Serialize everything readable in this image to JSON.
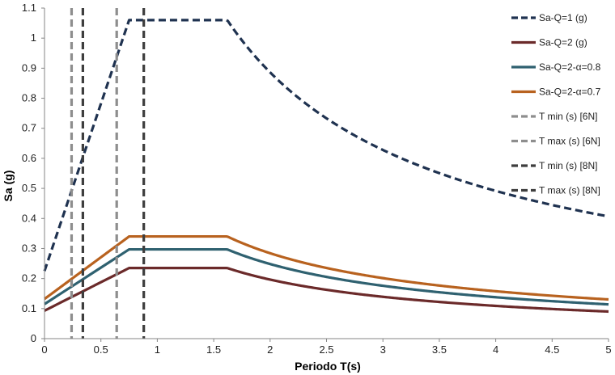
{
  "chart_data": {
    "type": "line",
    "title": "",
    "xlabel": "Periodo T(s)",
    "ylabel": "Sa (g)",
    "xlim": [
      0,
      5
    ],
    "ylim": [
      0,
      1.1
    ],
    "x_ticks": [
      "0",
      "0.5",
      "1",
      "1.5",
      "2",
      "2.5",
      "3",
      "3.5",
      "4",
      "4.5",
      "5"
    ],
    "y_ticks": [
      "0",
      "0.1",
      "0.2",
      "0.3",
      "0.4",
      "0.5",
      "0.6",
      "0.7",
      "0.8",
      "0.9",
      "1",
      "1.1"
    ],
    "grid": false,
    "legend_position": "right",
    "spectra": {
      "Ta": 0.75,
      "Tb": 1.62,
      "r": 0.85,
      "t_max": 5.0
    },
    "series": [
      {
        "name": "Sa-Q=1 (g)",
        "color": "#1f3250",
        "dash": "dashed",
        "a0": 0.225,
        "plateau": 1.06
      },
      {
        "name": "Sa-Q=2 (g)",
        "color": "#6b2a2a",
        "dash": "solid",
        "a0": 0.093,
        "plateau": 0.235
      },
      {
        "name": "Sa-Q=2-α=0.8",
        "color": "#2f6170",
        "dash": "solid",
        "a0": 0.115,
        "plateau": 0.297
      },
      {
        "name": "Sa-Q=2-α=0.7",
        "color": "#b8621f",
        "dash": "solid",
        "a0": 0.132,
        "plateau": 0.34
      },
      {
        "name": "T min (s) [6N]",
        "color": "#8e8e8e",
        "dash": "dashed",
        "vline": 0.24
      },
      {
        "name": "T max (s) [6N]",
        "color": "#8e8e8e",
        "dash": "dashed",
        "vline": 0.64
      },
      {
        "name": "T min (s) [8N]",
        "color": "#3e3e3e",
        "dash": "dashed",
        "vline": 0.34
      },
      {
        "name": "T max (s) [8N]",
        "color": "#3e3e3e",
        "dash": "dashed",
        "vline": 0.88
      }
    ]
  }
}
